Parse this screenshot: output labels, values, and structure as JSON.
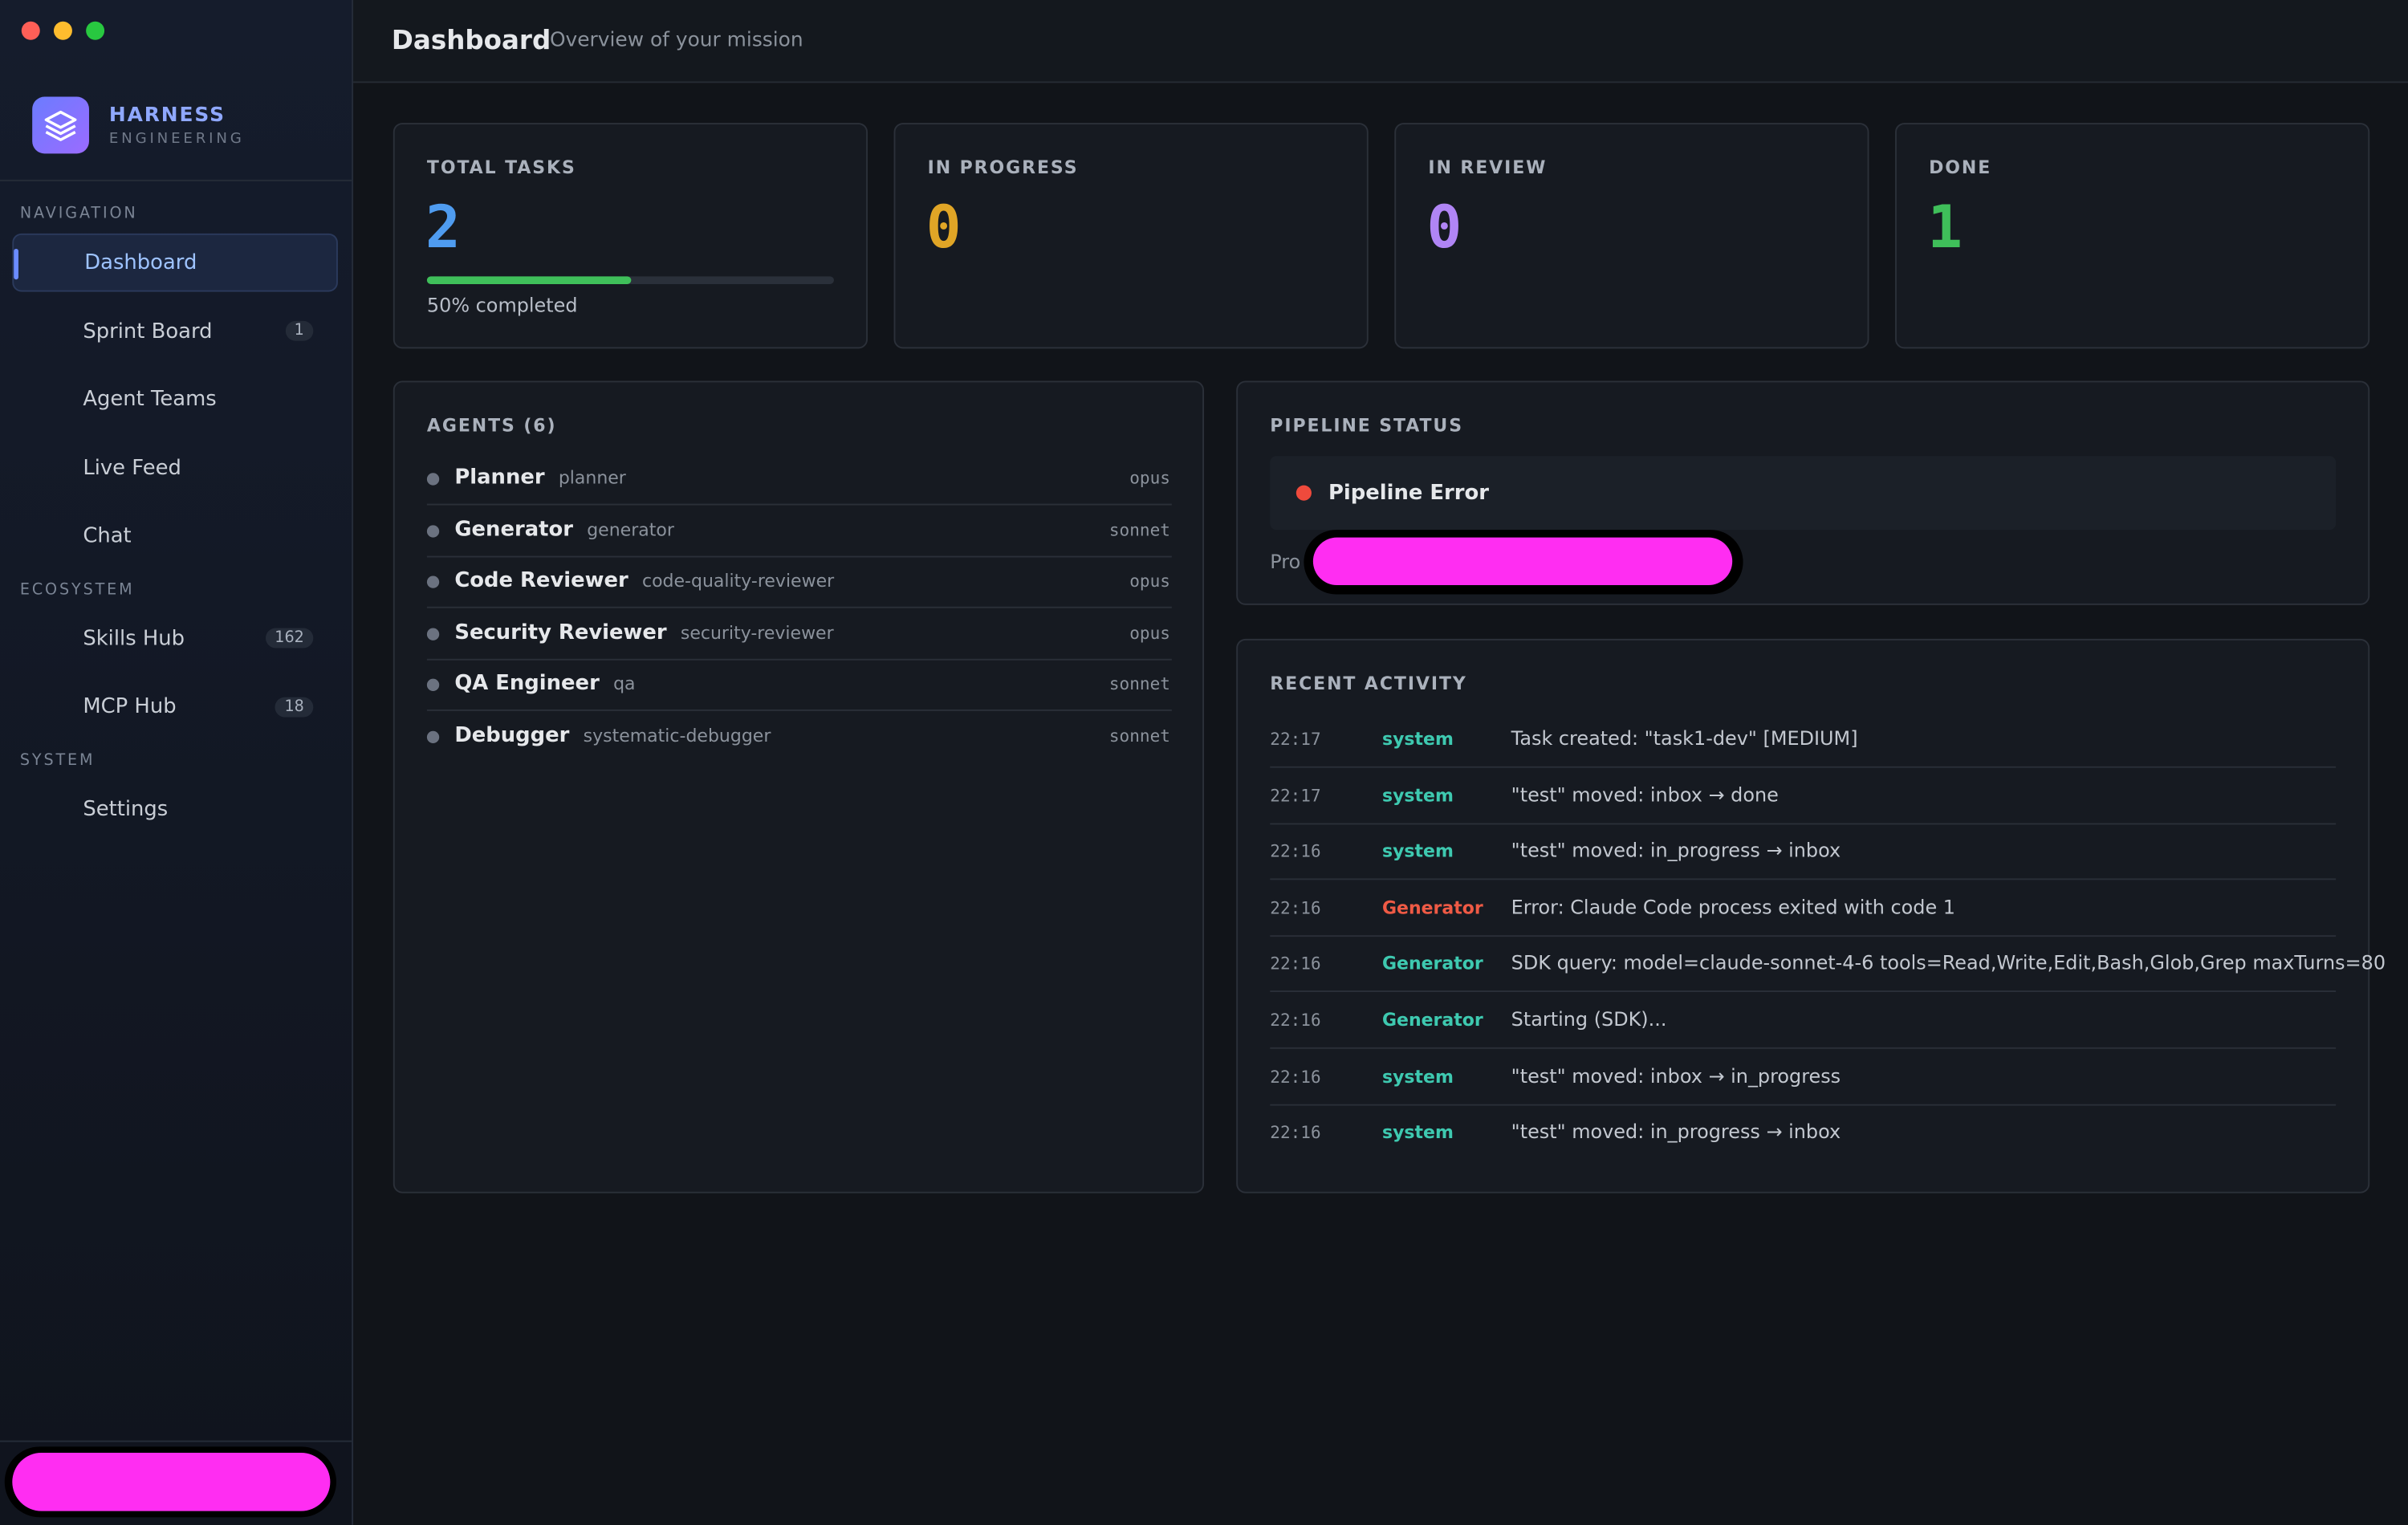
{
  "sidebar": {
    "brand": {
      "name": "HARNESS",
      "subtitle": "ENGINEERING"
    },
    "sections": [
      {
        "title": "NAVIGATION",
        "items": [
          {
            "label": "Dashboard",
            "active": true
          },
          {
            "label": "Sprint Board",
            "badge": 1
          },
          {
            "label": "Agent Teams"
          },
          {
            "label": "Live Feed"
          },
          {
            "label": "Chat"
          }
        ]
      },
      {
        "title": "ECOSYSTEM",
        "items": [
          {
            "label": "Skills Hub",
            "badge": 162
          },
          {
            "label": "MCP Hub",
            "badge": 18
          }
        ]
      },
      {
        "title": "SYSTEM",
        "items": [
          {
            "label": "Settings"
          }
        ]
      }
    ]
  },
  "header": {
    "title": "Dashboard",
    "subtitle": "Overview of your mission"
  },
  "stats": [
    {
      "label": "TOTAL TASKS",
      "value": 2,
      "color": "#4f9cf0",
      "progress": {
        "value": 50,
        "label": "50% completed"
      }
    },
    {
      "label": "IN PROGRESS",
      "value": 0,
      "color": "#e0a526"
    },
    {
      "label": "IN REVIEW",
      "value": 0,
      "color": "#b085f5"
    },
    {
      "label": "DONE",
      "value": 1,
      "color": "#3fbf5a"
    }
  ],
  "agents": {
    "title": "AGENTS (6)",
    "rows": [
      {
        "name": "Planner",
        "role": "planner",
        "model": "opus"
      },
      {
        "name": "Generator",
        "role": "generator",
        "model": "sonnet"
      },
      {
        "name": "Code Reviewer",
        "role": "code-quality-reviewer",
        "model": "opus"
      },
      {
        "name": "Security Reviewer",
        "role": "security-reviewer",
        "model": "opus"
      },
      {
        "name": "QA Engineer",
        "role": "qa",
        "model": "sonnet"
      },
      {
        "name": "Debugger",
        "role": "systematic-debugger",
        "model": "sonnet"
      }
    ]
  },
  "pipeline": {
    "title": "PIPELINE STATUS",
    "status": "Pipeline Error",
    "note": "Pro"
  },
  "activity": {
    "title": "RECENT ACTIVITY",
    "rows": [
      {
        "time": "22:17",
        "source": "system",
        "message": "Task created: \"task1-dev\" [MEDIUM]",
        "color": "#3ec9b0"
      },
      {
        "time": "22:17",
        "source": "system",
        "message": "\"test\" moved: inbox → done",
        "color": "#3ec9b0"
      },
      {
        "time": "22:16",
        "source": "system",
        "message": "\"test\" moved: in_progress → inbox",
        "color": "#3ec9b0"
      },
      {
        "time": "22:16",
        "source": "Generator",
        "message": "Error: Claude Code process exited with code 1",
        "color": "#ef5a45"
      },
      {
        "time": "22:16",
        "source": "Generator",
        "message": "SDK query: model=claude-sonnet-4-6 tools=Read,Write,Edit,Bash,Glob,Grep maxTurns=80",
        "color": "#3ec9b0"
      },
      {
        "time": "22:16",
        "source": "Generator",
        "message": "Starting (SDK)...",
        "color": "#3ec9b0"
      },
      {
        "time": "22:16",
        "source": "system",
        "message": "\"test\" moved: inbox → in_progress",
        "color": "#3ec9b0"
      },
      {
        "time": "22:16",
        "source": "system",
        "message": "\"test\" moved: in_progress → inbox",
        "color": "#3ec9b0"
      }
    ]
  }
}
